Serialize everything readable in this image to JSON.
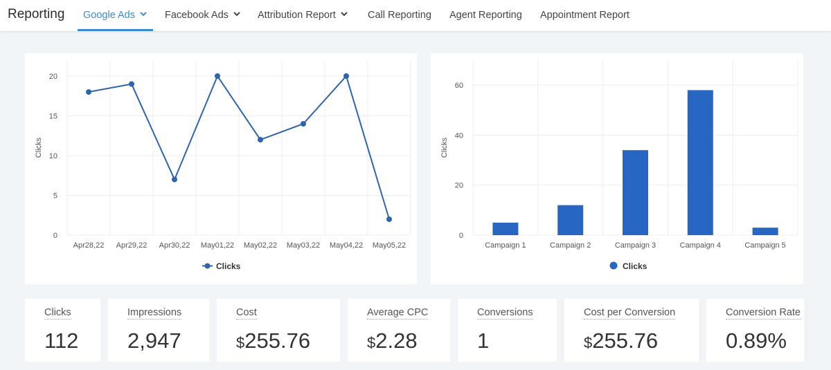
{
  "header": {
    "title": "Reporting",
    "tabs": [
      {
        "label": "Google Ads",
        "dropdown": true,
        "active": true
      },
      {
        "label": "Facebook Ads",
        "dropdown": true,
        "active": false
      },
      {
        "label": "Attribution Report",
        "dropdown": true,
        "active": false
      },
      {
        "label": "Call Reporting",
        "dropdown": false,
        "active": false
      },
      {
        "label": "Agent Reporting",
        "dropdown": false,
        "active": false
      },
      {
        "label": "Appointment Report",
        "dropdown": false,
        "active": false
      }
    ]
  },
  "colors": {
    "accent": "#3b8bd1",
    "line_series": "#2e63ad",
    "bar_series": "#2766c3"
  },
  "chart_data": [
    {
      "type": "line",
      "x": [
        "Apr28,22",
        "Apr29,22",
        "Apr30,22",
        "May01,22",
        "May02,22",
        "May03,22",
        "May04,22",
        "May05,22"
      ],
      "series": [
        {
          "name": "Clicks",
          "values": [
            18,
            19,
            7,
            20,
            12,
            14,
            20,
            2
          ]
        }
      ],
      "ylabel": "Clicks",
      "ylim": [
        0,
        22
      ],
      "yticks": [
        0,
        5,
        10,
        15,
        20
      ],
      "grid": true,
      "legend": "bottom"
    },
    {
      "type": "bar",
      "categories": [
        "Campaign 1",
        "Campaign 2",
        "Campaign 3",
        "Campaign 4",
        "Campaign 5"
      ],
      "series": [
        {
          "name": "Clicks",
          "values": [
            5,
            12,
            34,
            58,
            3
          ]
        }
      ],
      "ylabel": "Clicks",
      "ylim": [
        0,
        70
      ],
      "yticks": [
        0,
        20,
        40,
        60
      ],
      "grid": true,
      "legend": "bottom"
    }
  ],
  "stats": [
    {
      "label": "Clicks",
      "value": "112",
      "currency": ""
    },
    {
      "label": "Impressions",
      "value": "2,947",
      "currency": ""
    },
    {
      "label": "Cost",
      "value": "255.76",
      "currency": "$"
    },
    {
      "label": "Average CPC",
      "value": "2.28",
      "currency": "$"
    },
    {
      "label": "Conversions",
      "value": "1",
      "currency": ""
    },
    {
      "label": "Cost per Conversion",
      "value": "255.76",
      "currency": "$"
    },
    {
      "label": "Conversion Rate",
      "value": "0.89%",
      "currency": ""
    }
  ]
}
